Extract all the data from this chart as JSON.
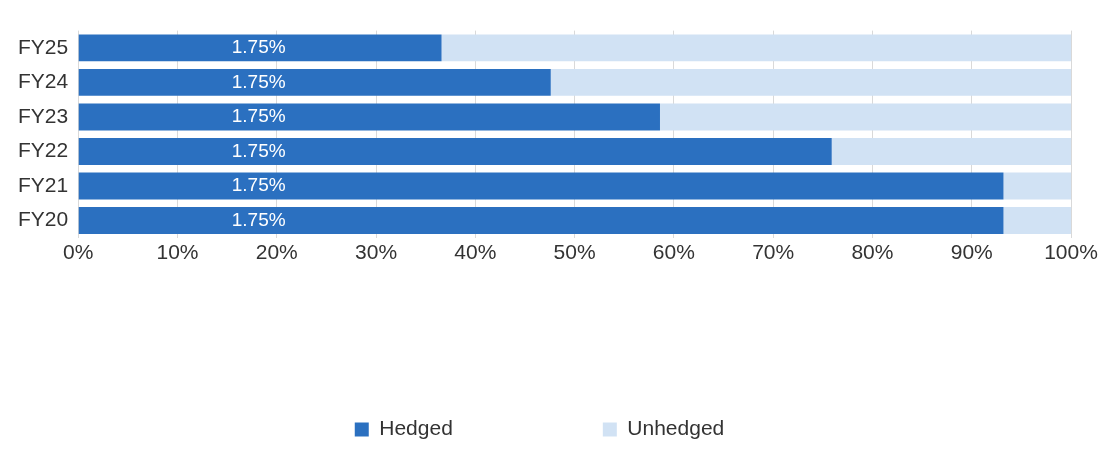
{
  "chart_data": {
    "type": "bar",
    "orientation": "horizontal",
    "stacked": true,
    "categories": [
      "FY25",
      "FY24",
      "FY23",
      "FY22",
      "FY21",
      "FY20"
    ],
    "series": [
      {
        "name": "Hedged",
        "color": "#2b70c0",
        "values": [
          36.6,
          47.6,
          58.6,
          75.9,
          93.2,
          93.2
        ]
      },
      {
        "name": "Unhedged",
        "color": "#d1e2f4",
        "values": [
          63.4,
          52.4,
          41.4,
          24.1,
          6.8,
          6.8
        ]
      }
    ],
    "annotations": [
      {
        "text": "1.75%",
        "y": "FY25"
      },
      {
        "text": "1.75%",
        "y": "FY24"
      },
      {
        "text": "1.75%",
        "y": "FY23"
      },
      {
        "text": "1.75%",
        "y": "FY22"
      },
      {
        "text": "1.75%",
        "y": "FY21"
      },
      {
        "text": "1.75%",
        "y": "FY20"
      }
    ],
    "xlim": [
      0,
      100
    ],
    "xticks": [
      {
        "value": 0,
        "label": "0%"
      },
      {
        "value": 10,
        "label": "10%"
      },
      {
        "value": 20,
        "label": "20%"
      },
      {
        "value": 30,
        "label": "30%"
      },
      {
        "value": 40,
        "label": "40%"
      },
      {
        "value": 50,
        "label": "50%"
      },
      {
        "value": 60,
        "label": "60%"
      },
      {
        "value": 70,
        "label": "70%"
      },
      {
        "value": 80,
        "label": "80%"
      },
      {
        "value": 90,
        "label": "90%"
      },
      {
        "value": 100,
        "label": "100%"
      }
    ],
    "grid": "x",
    "legend": "bottom"
  }
}
